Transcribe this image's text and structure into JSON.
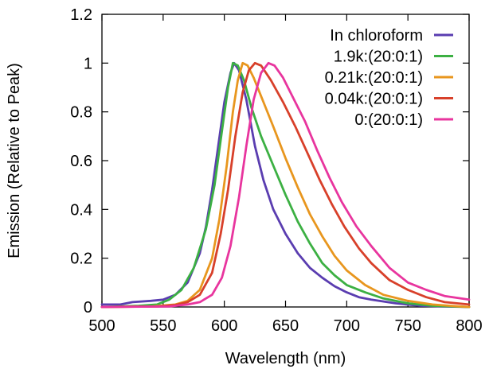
{
  "chart_data": {
    "type": "line",
    "title": "",
    "xlabel": "Wavelength (nm)",
    "ylabel": "Emission (Relative to Peak)",
    "xlim": [
      500,
      800
    ],
    "ylim": [
      0,
      1.2
    ],
    "x_ticks": [
      500,
      550,
      600,
      650,
      700,
      750,
      800
    ],
    "y_ticks": [
      0,
      0.2,
      0.4,
      0.6,
      0.8,
      1,
      1.2
    ],
    "x_tick_labels": [
      "500",
      "550",
      "600",
      "650",
      "700",
      "750",
      "800"
    ],
    "y_tick_labels": [
      "0",
      "0.2",
      "0.4",
      "0.6",
      "0.8",
      "1",
      "1.2"
    ],
    "grid": false,
    "legend_position": "top-right",
    "series": [
      {
        "name": "In chloroform",
        "color": "#5a3db0",
        "points": [
          [
            500,
            0.01
          ],
          [
            515,
            0.01
          ],
          [
            525,
            0.02
          ],
          [
            540,
            0.025
          ],
          [
            550,
            0.03
          ],
          [
            560,
            0.05
          ],
          [
            570,
            0.1
          ],
          [
            580,
            0.22
          ],
          [
            585,
            0.33
          ],
          [
            590,
            0.48
          ],
          [
            595,
            0.66
          ],
          [
            600,
            0.84
          ],
          [
            605,
            0.96
          ],
          [
            608,
            1.0
          ],
          [
            612,
            0.97
          ],
          [
            618,
            0.85
          ],
          [
            625,
            0.66
          ],
          [
            632,
            0.52
          ],
          [
            640,
            0.4
          ],
          [
            650,
            0.3
          ],
          [
            660,
            0.22
          ],
          [
            670,
            0.16
          ],
          [
            680,
            0.12
          ],
          [
            690,
            0.085
          ],
          [
            700,
            0.06
          ],
          [
            710,
            0.04
          ],
          [
            720,
            0.03
          ],
          [
            740,
            0.015
          ],
          [
            760,
            0.005
          ],
          [
            780,
            0.002
          ],
          [
            800,
            0.0
          ]
        ]
      },
      {
        "name": "1.9k:(20:0:1)",
        "color": "#3cb043",
        "points": [
          [
            500,
            0.0
          ],
          [
            530,
            0.005
          ],
          [
            545,
            0.01
          ],
          [
            555,
            0.03
          ],
          [
            565,
            0.07
          ],
          [
            575,
            0.16
          ],
          [
            585,
            0.32
          ],
          [
            592,
            0.5
          ],
          [
            598,
            0.72
          ],
          [
            603,
            0.9
          ],
          [
            607,
            1.0
          ],
          [
            611,
            0.99
          ],
          [
            616,
            0.93
          ],
          [
            622,
            0.82
          ],
          [
            630,
            0.7
          ],
          [
            640,
            0.58
          ],
          [
            650,
            0.46
          ],
          [
            660,
            0.35
          ],
          [
            670,
            0.26
          ],
          [
            680,
            0.18
          ],
          [
            690,
            0.13
          ],
          [
            700,
            0.09
          ],
          [
            715,
            0.06
          ],
          [
            730,
            0.035
          ],
          [
            750,
            0.015
          ],
          [
            770,
            0.005
          ],
          [
            800,
            0.0
          ]
        ]
      },
      {
        "name": "0.21k:(20:0:1)",
        "color": "#e8961e",
        "points": [
          [
            500,
            0.0
          ],
          [
            540,
            0.002
          ],
          [
            560,
            0.01
          ],
          [
            570,
            0.025
          ],
          [
            580,
            0.07
          ],
          [
            590,
            0.2
          ],
          [
            596,
            0.36
          ],
          [
            602,
            0.58
          ],
          [
            607,
            0.8
          ],
          [
            611,
            0.93
          ],
          [
            615,
            1.0
          ],
          [
            619,
            0.99
          ],
          [
            624,
            0.94
          ],
          [
            632,
            0.84
          ],
          [
            640,
            0.74
          ],
          [
            650,
            0.61
          ],
          [
            660,
            0.49
          ],
          [
            670,
            0.38
          ],
          [
            680,
            0.29
          ],
          [
            690,
            0.21
          ],
          [
            700,
            0.15
          ],
          [
            715,
            0.09
          ],
          [
            730,
            0.05
          ],
          [
            750,
            0.025
          ],
          [
            770,
            0.01
          ],
          [
            790,
            0.003
          ],
          [
            800,
            0.0
          ]
        ]
      },
      {
        "name": "0.04k:(20:0:1)",
        "color": "#d8402a",
        "points": [
          [
            500,
            0.0
          ],
          [
            545,
            0.002
          ],
          [
            560,
            0.008
          ],
          [
            570,
            0.02
          ],
          [
            580,
            0.05
          ],
          [
            590,
            0.14
          ],
          [
            597,
            0.3
          ],
          [
            603,
            0.48
          ],
          [
            609,
            0.7
          ],
          [
            615,
            0.88
          ],
          [
            620,
            0.97
          ],
          [
            625,
            1.0
          ],
          [
            630,
            0.99
          ],
          [
            638,
            0.93
          ],
          [
            648,
            0.84
          ],
          [
            658,
            0.74
          ],
          [
            668,
            0.63
          ],
          [
            678,
            0.52
          ],
          [
            688,
            0.42
          ],
          [
            698,
            0.33
          ],
          [
            710,
            0.24
          ],
          [
            720,
            0.18
          ],
          [
            735,
            0.11
          ],
          [
            750,
            0.07
          ],
          [
            765,
            0.04
          ],
          [
            780,
            0.02
          ],
          [
            800,
            0.01
          ]
        ]
      },
      {
        "name": "0:(20:0:1)",
        "color": "#e8359e",
        "points": [
          [
            500,
            0.0
          ],
          [
            555,
            0.002
          ],
          [
            570,
            0.01
          ],
          [
            580,
            0.02
          ],
          [
            590,
            0.05
          ],
          [
            598,
            0.12
          ],
          [
            605,
            0.25
          ],
          [
            612,
            0.45
          ],
          [
            618,
            0.66
          ],
          [
            624,
            0.85
          ],
          [
            630,
            0.96
          ],
          [
            636,
            1.0
          ],
          [
            641,
            0.99
          ],
          [
            648,
            0.94
          ],
          [
            656,
            0.86
          ],
          [
            666,
            0.76
          ],
          [
            676,
            0.64
          ],
          [
            686,
            0.53
          ],
          [
            696,
            0.43
          ],
          [
            708,
            0.33
          ],
          [
            720,
            0.25
          ],
          [
            735,
            0.16
          ],
          [
            750,
            0.1
          ],
          [
            765,
            0.07
          ],
          [
            780,
            0.045
          ],
          [
            800,
            0.03
          ]
        ]
      }
    ]
  }
}
